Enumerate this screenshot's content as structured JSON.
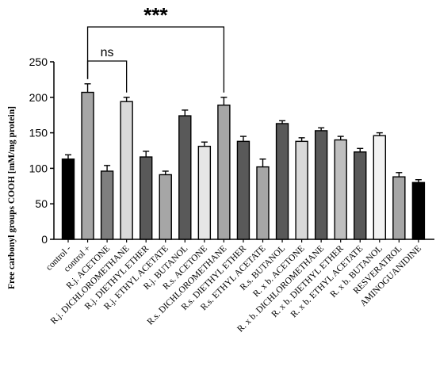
{
  "chart_data": {
    "type": "bar",
    "ylabel": "Free carbonyl groups COOH [mM/mg protein]",
    "ylim": [
      0,
      250
    ],
    "yticks": [
      0,
      50,
      100,
      150,
      200,
      250
    ],
    "categories": [
      "control -",
      "control +",
      "R.j. ACETONE",
      "R.j. DICHLOROMETHANE",
      "R.j. DIETHYL ETHER",
      "R.j. ETHYL ACETATE",
      "R.j. BUTANOL",
      "R.s. ACETONE",
      "R.s. DICHLOROMETHANE",
      "R.s. DIETHYL ETHER",
      "R.s. ETHYL ACETATE",
      "R.s. BUTANOL",
      "R. x b. ACETONE",
      "R. x b. DICHLOROMETHANE",
      "R. x b. DIETHYL ETHER",
      "R. x b. ETHYL ACETATE",
      "R. x b. BUTANOL",
      "RESVERATROL",
      "AMINOGUANIDINE"
    ],
    "values": [
      113,
      207,
      96,
      194,
      116,
      91,
      174,
      131,
      189,
      138,
      102,
      163,
      138,
      153,
      140,
      123,
      146,
      88,
      80
    ],
    "errors": [
      6,
      12,
      8,
      6,
      8,
      5,
      8,
      6,
      11,
      7,
      11,
      4,
      5,
      4,
      5,
      5,
      4,
      6,
      4
    ],
    "colors": [
      "#000000",
      "#a6a6a6",
      "#7f7f7f",
      "#d9d9d9",
      "#595959",
      "#a6a6a6",
      "#595959",
      "#e6e6e6",
      "#a6a6a6",
      "#595959",
      "#a6a6a6",
      "#595959",
      "#d9d9d9",
      "#595959",
      "#bfbfbf",
      "#595959",
      "#f2f2f2",
      "#a6a6a6",
      "#000000"
    ],
    "annotations": [
      {
        "label": "***",
        "from": 1,
        "to": 8,
        "y": 234
      },
      {
        "label": "ns",
        "from": 1,
        "to": 3,
        "y": 227
      }
    ]
  }
}
